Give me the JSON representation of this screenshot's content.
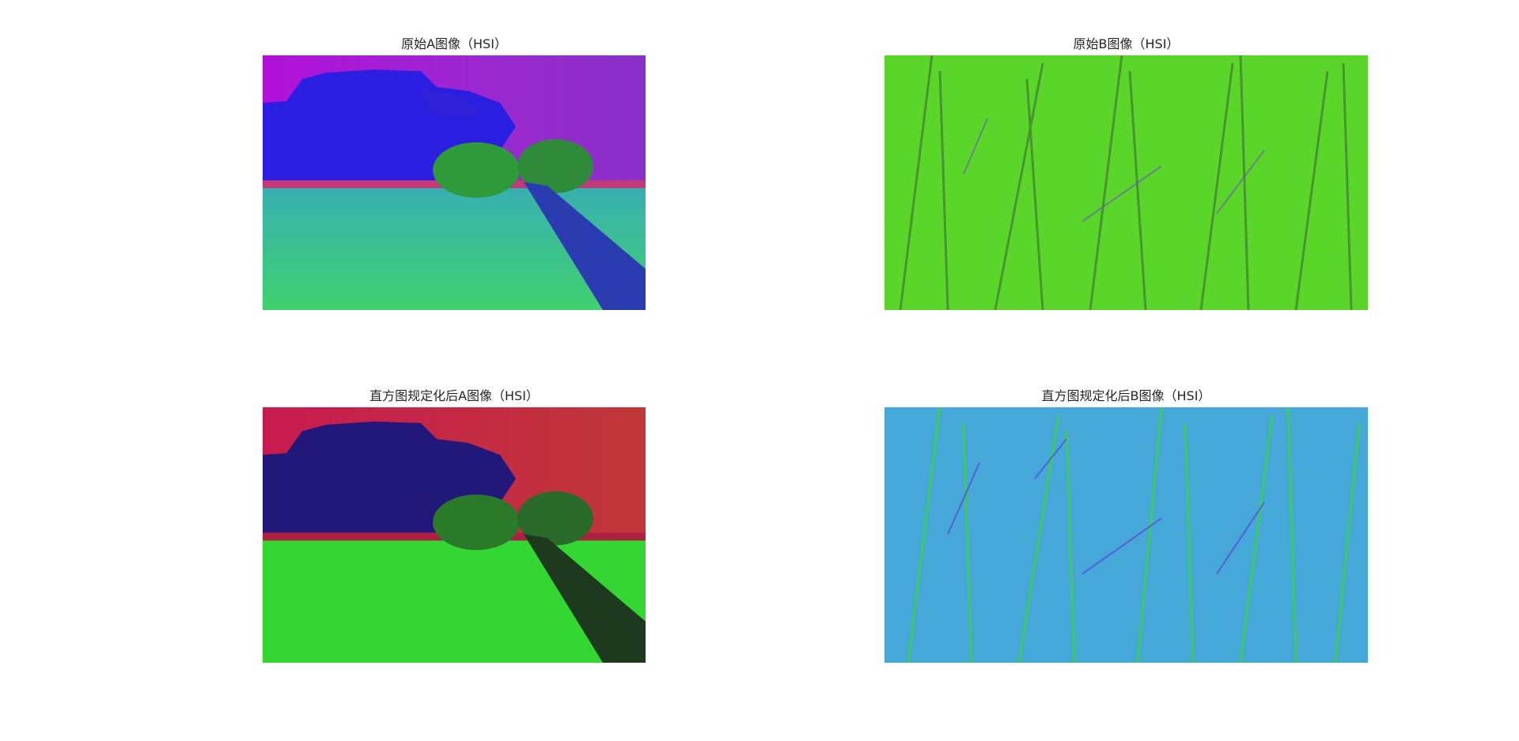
{
  "figure": {
    "panels": [
      {
        "title": "原始A图像（HSI）",
        "image": "landscape-hsi-original"
      },
      {
        "title": "原始B图像（HSI）",
        "image": "grass-hsi-original"
      },
      {
        "title": "直方图规定化后A图像（HSI）",
        "image": "landscape-hsi-specified"
      },
      {
        "title": "直方图规定化后B图像（HSI）",
        "image": "grass-hsi-specified"
      }
    ]
  },
  "colors": {
    "a_sky_original": "#a020d0",
    "a_cloud": "#2a1ee0",
    "a_ground_original": "#3ec8a0",
    "a_trees": "#3cc23c",
    "b_grass_original": "#5ad62a",
    "a_sky_specified": "#c8204a",
    "a_ground_specified": "#34d634",
    "b_grass_specified": "#46a8d8"
  }
}
